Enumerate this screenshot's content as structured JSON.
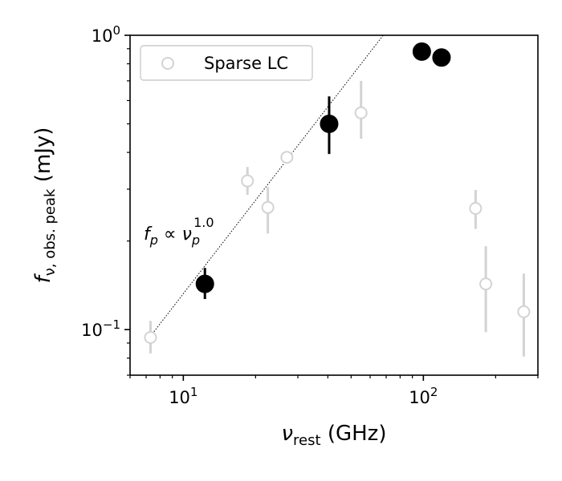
{
  "chart_data": {
    "type": "scatter",
    "title": "",
    "xlabel": {
      "base": "ν",
      "sub": "rest",
      "rest": " (GHz)"
    },
    "ylabel": {
      "base": "f",
      "sub": "ν, obs. peak",
      "rest": " (mJy)"
    },
    "xscale": "log",
    "yscale": "log",
    "xlim": [
      6.0,
      300.0
    ],
    "ylim": [
      0.07,
      1.0
    ],
    "x_major_ticks": [
      {
        "value": 10,
        "base": "10",
        "exp": "1"
      },
      {
        "value": 100,
        "base": "10",
        "exp": "2"
      }
    ],
    "y_major_ticks": [
      {
        "value": 0.1,
        "base": "10",
        "exp": "−1"
      },
      {
        "value": 1.0,
        "base": "10",
        "exp": "0"
      }
    ],
    "legend": {
      "position": "top-left",
      "entries": [
        "Sparse LC"
      ]
    },
    "grid": false,
    "series": [
      {
        "name": "Sparse LC",
        "style": "open-circle",
        "color": "#d3d3d3",
        "points": [
          {
            "x": 7.3,
            "y": 0.094,
            "ylo": 0.083,
            "yhi": 0.107
          },
          {
            "x": 18.5,
            "y": 0.32,
            "ylo": 0.287,
            "yhi": 0.357
          },
          {
            "x": 22.5,
            "y": 0.26,
            "ylo": 0.212,
            "yhi": 0.305
          },
          {
            "x": 27.0,
            "y": 0.385,
            "ylo": 0.385,
            "yhi": 0.385
          },
          {
            "x": 55.0,
            "y": 0.545,
            "ylo": 0.445,
            "yhi": 0.7
          },
          {
            "x": 165.0,
            "y": 0.258,
            "ylo": 0.22,
            "yhi": 0.298
          },
          {
            "x": 182.0,
            "y": 0.143,
            "ylo": 0.098,
            "yhi": 0.192
          },
          {
            "x": 262.0,
            "y": 0.115,
            "ylo": 0.081,
            "yhi": 0.155
          }
        ]
      },
      {
        "name": "",
        "style": "filled-circle",
        "color": "#000000",
        "points": [
          {
            "x": 12.3,
            "y": 0.143,
            "ylo": 0.127,
            "yhi": 0.162
          },
          {
            "x": 40.5,
            "y": 0.5,
            "ylo": 0.395,
            "yhi": 0.62
          },
          {
            "x": 98.5,
            "y": 0.88,
            "ylo": 0.88,
            "yhi": 0.88
          },
          {
            "x": 119.0,
            "y": 0.84,
            "ylo": 0.84,
            "yhi": 0.84
          }
        ]
      }
    ],
    "fit_line": {
      "style": "dotted",
      "color": "#000000",
      "points": [
        [
          7.3,
          0.095
        ],
        [
          68.0,
          1.0
        ]
      ]
    },
    "annotation": {
      "f": "f",
      "fsub": "p",
      "prop": " ∝ ",
      "nu": "ν",
      "nusub": "p",
      "exp": "1.0"
    }
  }
}
